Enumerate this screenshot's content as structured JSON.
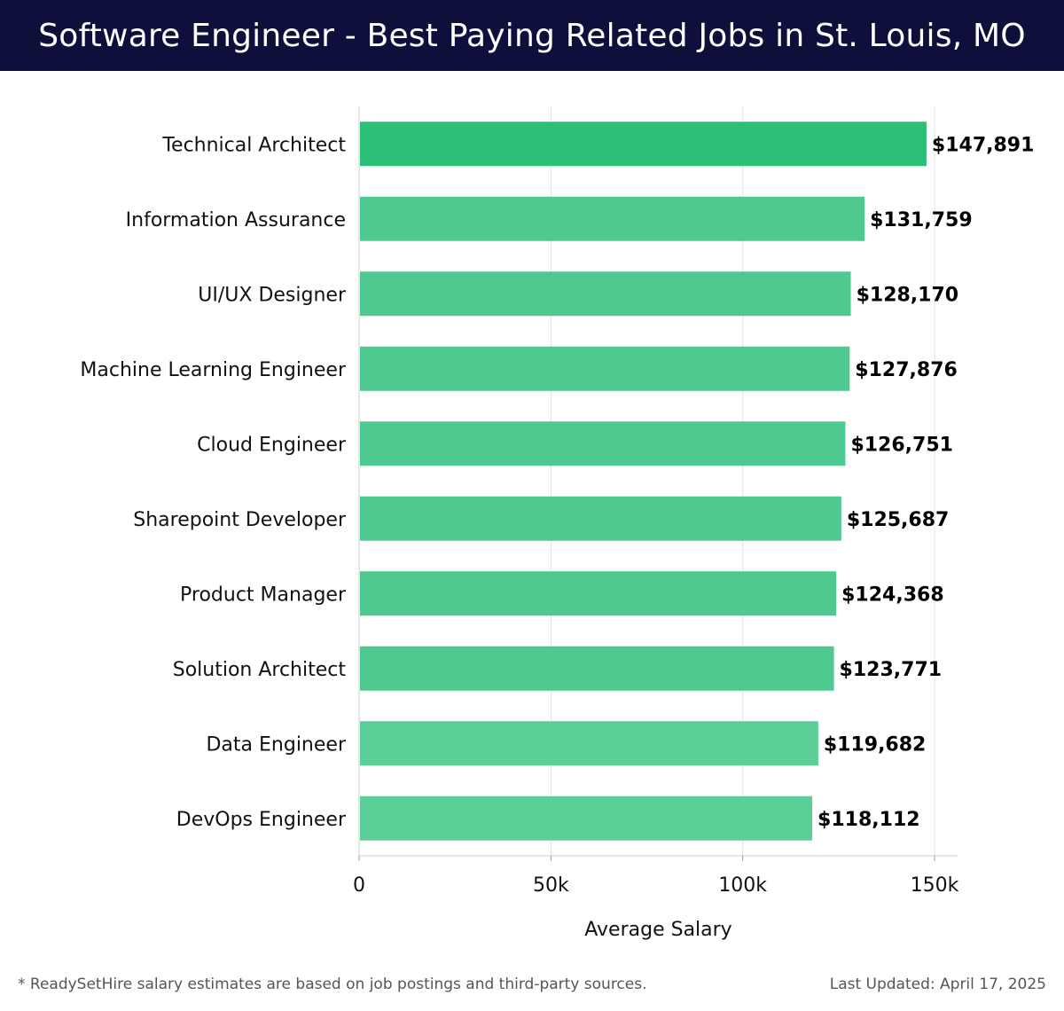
{
  "header": {
    "title": "Software Engineer - Best Paying Related Jobs in St. Louis, MO"
  },
  "chart_data": {
    "type": "bar",
    "orientation": "horizontal",
    "categories": [
      "Technical Architect",
      "Information Assurance",
      "UI/UX Designer",
      "Machine Learning Engineer",
      "Cloud Engineer",
      "Sharepoint Developer",
      "Product Manager",
      "Solution Architect",
      "Data Engineer",
      "DevOps Engineer"
    ],
    "values": [
      147891,
      131759,
      128170,
      127876,
      126751,
      125687,
      124368,
      123771,
      119682,
      118112
    ],
    "value_labels": [
      "$147,891",
      "$131,759",
      "$128,170",
      "$127,876",
      "$126,751",
      "$125,687",
      "$124,368",
      "$123,771",
      "$119,682",
      "$118,112"
    ],
    "xlabel": "Average Salary",
    "xlim": [
      0,
      156000
    ],
    "xticks": [
      0,
      50000,
      100000,
      150000
    ],
    "xtick_labels": [
      "0",
      "50k",
      "100k",
      "150k"
    ],
    "grid": "vertical",
    "colors": {
      "top_bar": "#2bbf78",
      "bar": "#4ec98f",
      "bar_light": "#5ccf99"
    }
  },
  "footer": {
    "note": "* ReadySetHire salary estimates are based on job postings and third-party sources.",
    "updated": "Last Updated: April 17, 2025"
  }
}
